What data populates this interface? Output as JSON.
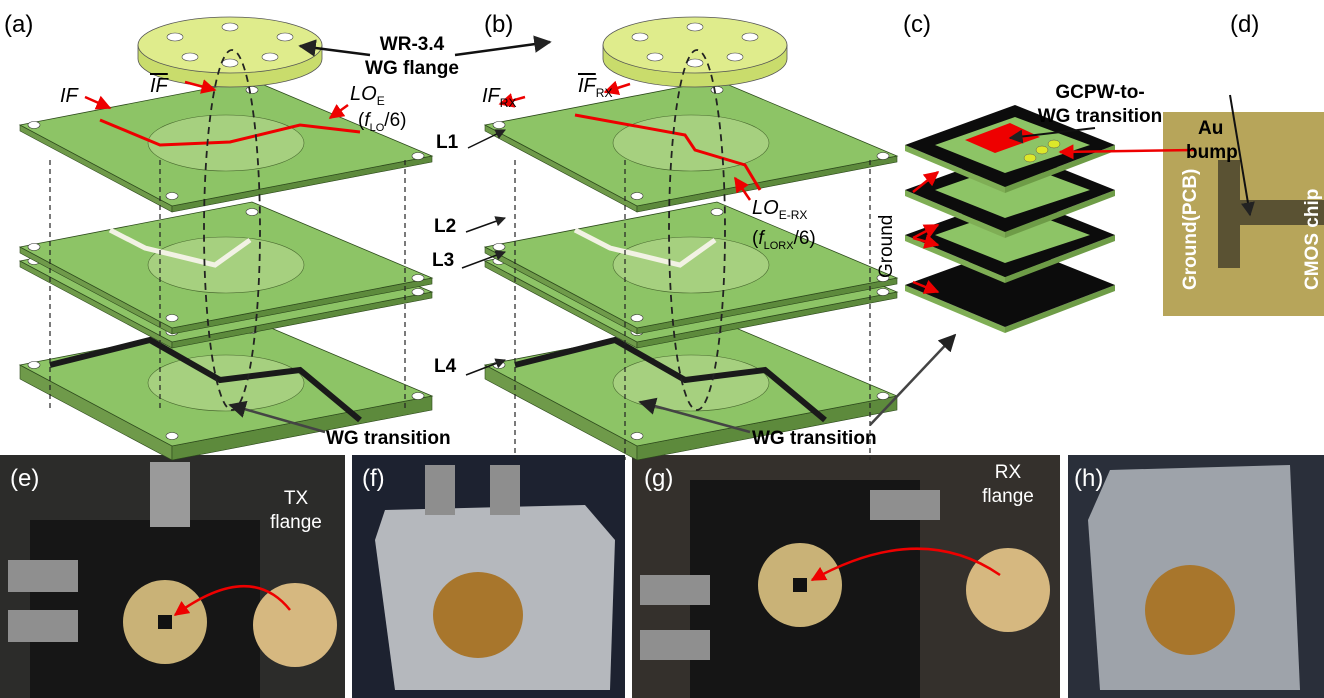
{
  "panel_labels": [
    "(a)",
    "(b)",
    "(c)",
    "(d)"
  ],
  "flange_label": {
    "line1": "WR-3.4",
    "line2": "WG flange"
  },
  "panel_a": {
    "if": "IF",
    "if_bar": "IF",
    "lo": {
      "main": "LO",
      "sub": "E"
    },
    "lo_freq": {
      "pre": "(",
      "var": "f",
      "sub": "LO",
      "post": "/6)"
    },
    "layers": [
      "L1",
      "L2",
      "L3",
      "L4"
    ],
    "wg_transition": "WG transition"
  },
  "panel_b": {
    "if": {
      "main": "IF",
      "sub": "RX"
    },
    "if_bar": {
      "main": "IF",
      "sub": "RX"
    },
    "lo": {
      "main": "LO",
      "sub": "E-RX"
    },
    "lo_freq": {
      "pre": "(",
      "var": "f",
      "sub": "LORX",
      "post": "/6)"
    },
    "wg_transition": "WG transition"
  },
  "panel_c": {
    "transition": [
      "GCPW-to-",
      "WG transition"
    ],
    "bump": [
      "Au",
      "bump"
    ],
    "ground": "Ground"
  },
  "panel_d": {
    "ground": "Ground(PCB)",
    "chip": "CMOS chip"
  },
  "photos": {
    "e": {
      "label": "(e)",
      "flange": [
        "TX",
        "flange"
      ]
    },
    "f": {
      "label": "(f)"
    },
    "g": {
      "label": "(g)",
      "flange": [
        "RX",
        "flange"
      ]
    },
    "h": {
      "label": "(h)"
    }
  }
}
